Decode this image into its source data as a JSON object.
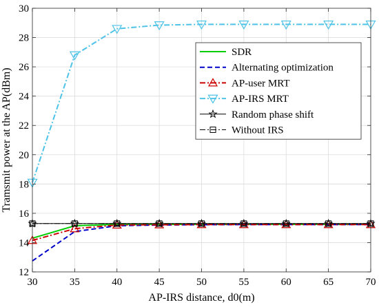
{
  "chart_data": {
    "type": "line",
    "title": "",
    "xlabel": "AP-IRS distance, d0(m)",
    "ylabel": "Tramsmit power at the AP(dBm)",
    "xlim": [
      30,
      70
    ],
    "ylim": [
      12,
      30
    ],
    "xticks": [
      30,
      35,
      40,
      45,
      50,
      55,
      60,
      65,
      70
    ],
    "yticks": [
      12,
      14,
      16,
      18,
      20,
      22,
      24,
      26,
      28,
      30
    ],
    "grid": true,
    "legend_position": "top-right",
    "x": [
      30,
      35,
      40,
      45,
      50,
      55,
      60,
      65,
      70
    ],
    "series": [
      {
        "name": "SDR",
        "values": [
          14.3,
          15.15,
          15.25,
          15.25,
          15.25,
          15.25,
          15.25,
          15.25,
          15.25
        ],
        "color": "#00cc00",
        "dash": "solid",
        "marker": "none"
      },
      {
        "name": "Alternating optimization",
        "values": [
          12.75,
          14.75,
          15.15,
          15.2,
          15.22,
          15.23,
          15.23,
          15.23,
          15.23
        ],
        "color": "#0000cc",
        "dash": "dash",
        "marker": "none"
      },
      {
        "name": "AP-user MRT",
        "values": [
          14.15,
          14.95,
          15.2,
          15.22,
          15.23,
          15.23,
          15.23,
          15.23,
          15.23
        ],
        "color": "#cc0000",
        "dash": "dashdot",
        "marker": "triangle-up"
      },
      {
        "name": "AP-IRS MRT",
        "values": [
          18.1,
          26.8,
          28.6,
          28.85,
          28.9,
          28.9,
          28.9,
          28.9,
          28.9
        ],
        "color": "#4dc3e8",
        "dash": "dashdot",
        "marker": "triangle-down"
      },
      {
        "name": "Random phase shift",
        "values": [
          15.3,
          15.3,
          15.3,
          15.3,
          15.3,
          15.3,
          15.3,
          15.3,
          15.3
        ],
        "color": "#000000",
        "dash": "solid",
        "marker": "star"
      },
      {
        "name": "Without IRS",
        "values": [
          15.3,
          15.3,
          15.3,
          15.3,
          15.3,
          15.3,
          15.3,
          15.3,
          15.3
        ],
        "color": "#000000",
        "dash": "dashdot",
        "marker": "square"
      }
    ]
  }
}
